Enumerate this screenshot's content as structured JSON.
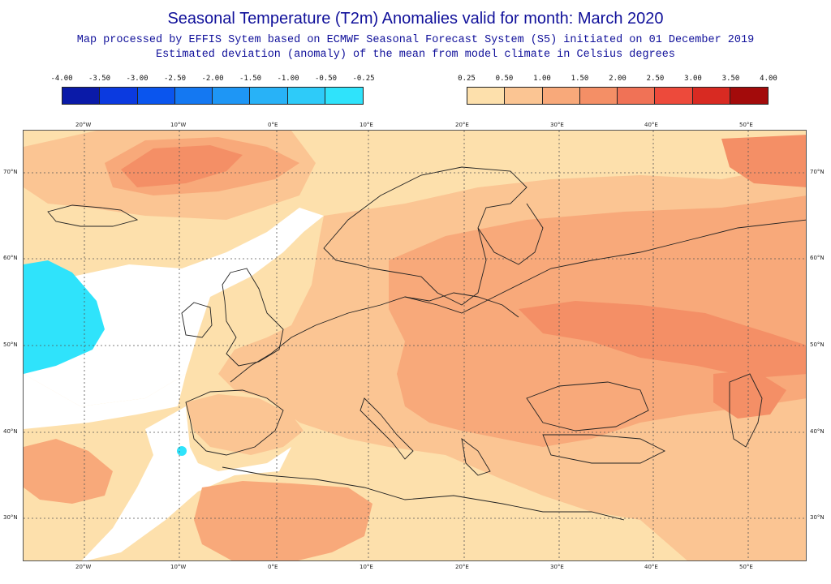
{
  "title": "Seasonal Temperature (T2m) Anomalies valid for month: March 2020",
  "subtitle_line1": "Map processed by EFFIS Sytem based on ECMWF Seasonal Forecast System (S5) initiated on 01 December 2019",
  "subtitle_line2": "Estimated deviation (anomaly) of the mean from model climate in Celsius degrees",
  "legend": {
    "cold_labels": [
      "-4.00",
      "-3.50",
      "-3.00",
      "-2.50",
      "-2.00",
      "-1.50",
      "-1.00",
      "-0.50",
      "-0.25"
    ],
    "cold_colors": [
      "#0a1aa8",
      "#0b3ae0",
      "#0a55ee",
      "#1478f2",
      "#1e96f5",
      "#28b2f7",
      "#2ecbf9",
      "#2fe3fb"
    ],
    "warm_labels": [
      "0.25",
      "0.50",
      "1.00",
      "1.50",
      "2.00",
      "2.50",
      "3.00",
      "3.50",
      "4.00"
    ],
    "warm_colors": [
      "#fde0ac",
      "#fbc593",
      "#f8a97a",
      "#f48f66",
      "#f07256",
      "#ed4a3b",
      "#d82a22",
      "#a30b0b"
    ]
  },
  "map": {
    "lon_labels": [
      "20°W",
      "10°W",
      "0°E",
      "10°E",
      "20°E",
      "30°E",
      "40°E",
      "50°E"
    ],
    "lat_labels": [
      "70°N",
      "60°N",
      "50°N",
      "40°N",
      "30°N"
    ],
    "colors": {
      "neutral": "#ffffff",
      "warm_025": "#fde0ac",
      "warm_05": "#fbc593",
      "warm_10": "#f8a97a",
      "warm_15": "#f48f66",
      "cold_025": "#2fe3fb",
      "coast": "#222222",
      "grid": "#555555"
    }
  }
}
